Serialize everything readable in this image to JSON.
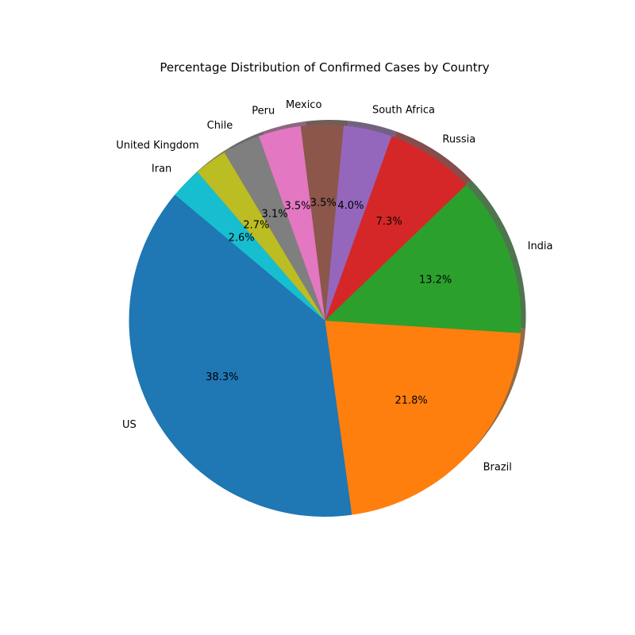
{
  "chart_data": {
    "type": "pie",
    "title": "Percentage Distribution of Confirmed Cases by Country",
    "shadow": true,
    "start_angle_deg": 140,
    "direction": "counterclockwise",
    "slices": [
      {
        "label": "US",
        "value": 38.3,
        "pct_label": "38.3%",
        "color": "#1f77b4"
      },
      {
        "label": "Brazil",
        "value": 21.8,
        "pct_label": "21.8%",
        "color": "#ff7f0e"
      },
      {
        "label": "India",
        "value": 13.2,
        "pct_label": "13.2%",
        "color": "#2ca02c"
      },
      {
        "label": "Russia",
        "value": 7.3,
        "pct_label": "7.3%",
        "color": "#d62728"
      },
      {
        "label": "South Africa",
        "value": 4.0,
        "pct_label": "4.0%",
        "color": "#9467bd"
      },
      {
        "label": "Mexico",
        "value": 3.5,
        "pct_label": "3.5%",
        "color": "#8c564b"
      },
      {
        "label": "Peru",
        "value": 3.5,
        "pct_label": "3.5%",
        "color": "#e377c2"
      },
      {
        "label": "Chile",
        "value": 3.1,
        "pct_label": "3.1%",
        "color": "#7f7f7f"
      },
      {
        "label": "United Kingdom",
        "value": 2.7,
        "pct_label": "2.7%",
        "color": "#bcbd22"
      },
      {
        "label": "Iran",
        "value": 2.6,
        "pct_label": "2.6%",
        "color": "#17becf"
      }
    ]
  }
}
